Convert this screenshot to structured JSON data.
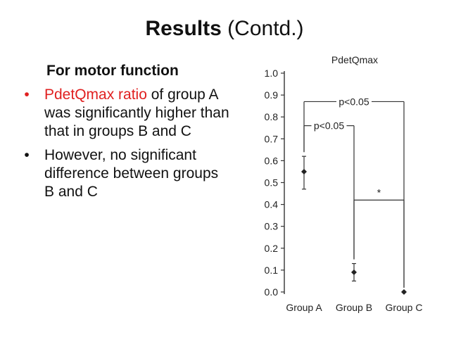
{
  "slide": {
    "title_bold": "Results",
    "title_rest": " (Contd.)",
    "subheading": "For motor function",
    "bullet_char": "•",
    "bullet1_highlight": "PdetQmax ratio",
    "bullet1_rest": " of group A was significantly higher than that in groups B and C",
    "bullet2": "However, no significant difference between groups B and C",
    "highlight_color": "#e02020"
  },
  "chart_data": {
    "type": "scatter",
    "title": "PdetQmax",
    "xlabel": "",
    "ylabel": "",
    "categories": [
      "Group A",
      "Group B",
      "Group C"
    ],
    "series": [
      {
        "values": [
          0.55,
          0.09,
          0.0
        ],
        "error_low": [
          0.47,
          0.05,
          0.0
        ],
        "error_high": [
          0.62,
          0.13,
          0.0
        ]
      }
    ],
    "ylim": [
      0,
      1.0
    ],
    "yticks": [
      "0.0",
      "0.1",
      "0.2",
      "0.3",
      "0.4",
      "0.5",
      "0.6",
      "0.7",
      "0.8",
      "0.9",
      "1.0"
    ],
    "grid": false,
    "annotations": [
      {
        "label": "p<0.05",
        "from": "Group A",
        "to": "Group B",
        "y": 0.76
      },
      {
        "label": "p<0.05",
        "from": "Group A",
        "to": "Group C",
        "y": 0.87
      },
      {
        "label": "*",
        "from": "Group B",
        "to": "Group C",
        "y": 0.42
      }
    ]
  }
}
